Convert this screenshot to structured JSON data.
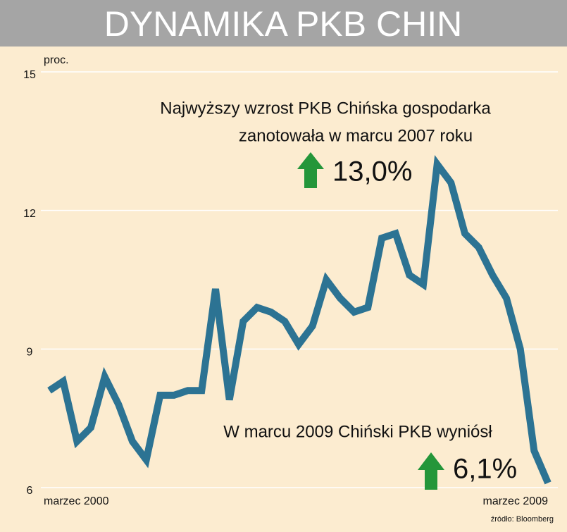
{
  "chart_data": {
    "type": "line",
    "title": "DYNAMIKA PKB CHIN",
    "ylabel": "proc.",
    "categories": [
      "marzec 2000",
      null,
      null,
      null,
      null,
      null,
      null,
      null,
      null,
      null,
      null,
      null,
      null,
      null,
      null,
      null,
      null,
      null,
      null,
      null,
      null,
      null,
      null,
      null,
      null,
      null,
      null,
      null,
      null,
      null,
      null,
      null,
      null,
      null,
      null,
      null,
      "marzec 2009"
    ],
    "values": [
      8.1,
      8.3,
      7.0,
      7.3,
      8.4,
      7.8,
      7.0,
      6.6,
      8.0,
      8.0,
      8.1,
      8.1,
      10.3,
      7.9,
      9.6,
      9.9,
      9.8,
      9.6,
      9.1,
      9.5,
      10.5,
      10.1,
      9.8,
      9.9,
      11.4,
      11.5,
      10.6,
      10.4,
      13.0,
      12.6,
      11.5,
      11.2,
      10.6,
      10.1,
      9.0,
      6.8,
      6.1
    ],
    "color": "#2c7393",
    "ylim": [
      6,
      15
    ],
    "yticks": [
      6,
      9,
      12,
      15
    ],
    "grid": true,
    "annotations": [
      "Najwyższy wzrost PKB Chińska gospodarka",
      "zanotowała w marcu 2007 roku",
      "13,0%",
      "W marcu 2009 Chiński PKB wyniósł",
      "6,1%"
    ],
    "source": "źródło: Bloomberg"
  }
}
